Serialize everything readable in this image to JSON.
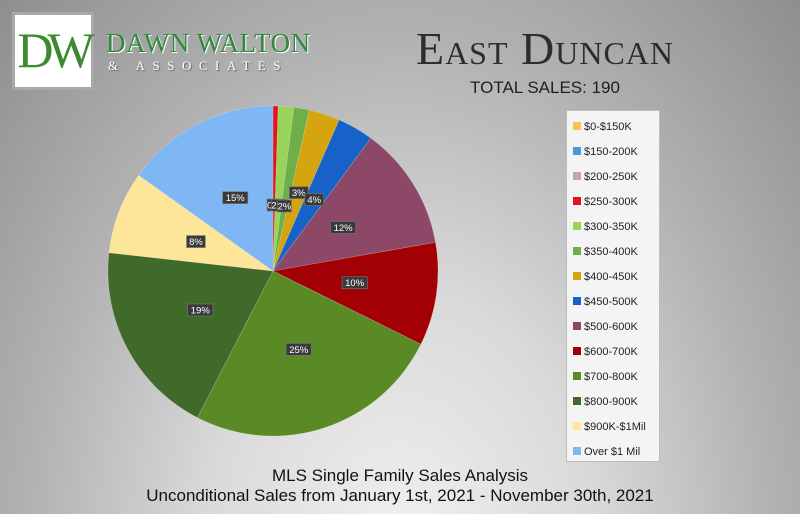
{
  "logo": {
    "letters": "DW",
    "name": "DAWN WALTON",
    "sub": "& ASSOCIATES"
  },
  "title": "East Duncan",
  "total_sales": "TOTAL SALES: 190",
  "footer": {
    "line1": "MLS Single Family Sales Analysis",
    "line2": "Unconditional Sales from January 1st, 2021 - November 30th, 2021"
  },
  "legend_items": [
    {
      "label": "$0-$150K",
      "color": "#f6c54a"
    },
    {
      "label": "$150-200K",
      "color": "#4a9ae0"
    },
    {
      "label": "$200-250K",
      "color": "#c9a0b8"
    },
    {
      "label": "$250-300K",
      "color": "#e3141c"
    },
    {
      "label": "$300-350K",
      "color": "#9ad35a"
    },
    {
      "label": "$350-400K",
      "color": "#6fae4a"
    },
    {
      "label": "$400-450K",
      "color": "#d6a40e"
    },
    {
      "label": "$450-500K",
      "color": "#1662c8"
    },
    {
      "label": "$500-600K",
      "color": "#8c4866"
    },
    {
      "label": "$600-700K",
      "color": "#a30005"
    },
    {
      "label": "$700-800K",
      "color": "#5a8a26"
    },
    {
      "label": "$800-900K",
      "color": "#3f6a2a"
    },
    {
      "label": "$900K-$1Mil",
      "color": "#fde69a"
    },
    {
      "label": "Over $1 Mil",
      "color": "#7fb6f4"
    }
  ],
  "chart_data": {
    "type": "pie",
    "title": "East Duncan",
    "subtitle": "TOTAL SALES: 190",
    "legend_position": "right",
    "categories": [
      "$0-$150K",
      "$150-200K",
      "$200-250K",
      "$250-300K",
      "$300-350K",
      "$350-400K",
      "$400-450K",
      "$450-500K",
      "$500-600K",
      "$600-700K",
      "$700-800K",
      "$800-900K",
      "$900K-$1Mil",
      "Over $1 Mil"
    ],
    "values": [
      0,
      0,
      0,
      0.5,
      1.5,
      1.5,
      3,
      3.5,
      12,
      10,
      25,
      19,
      8,
      15
    ],
    "data_labels": [
      "",
      "",
      "",
      "0%",
      "2%",
      "2%",
      "3%",
      "4%",
      "12%",
      "10%",
      "25%",
      "19%",
      "8%",
      "15%"
    ],
    "colors": [
      "#f6c54a",
      "#4a9ae0",
      "#c9a0b8",
      "#e3141c",
      "#9ad35a",
      "#6fae4a",
      "#d6a40e",
      "#1662c8",
      "#8c4866",
      "#a30005",
      "#5a8a26",
      "#3f6a2a",
      "#fde69a",
      "#7fb6f4"
    ]
  }
}
